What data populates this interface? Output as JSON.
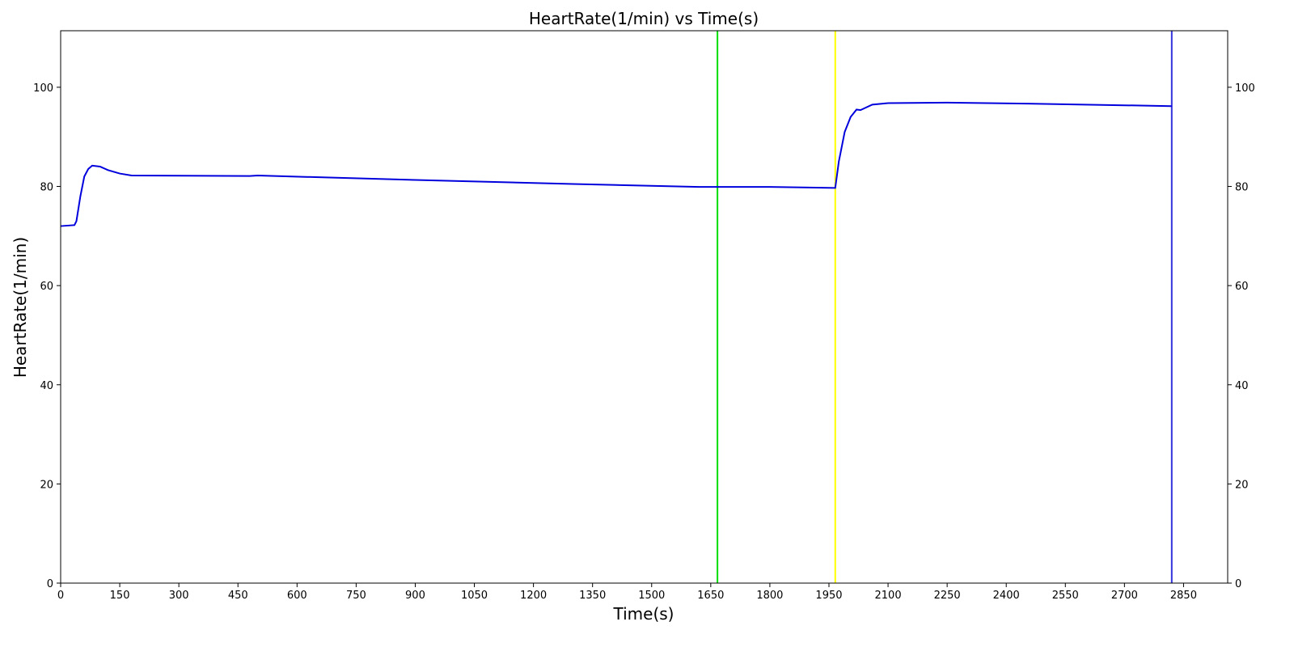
{
  "chart_data": {
    "type": "line",
    "title": "HeartRate(1/min) vs Time(s)",
    "x_label": "Time(s)",
    "y_label": "HeartRate(1/min)",
    "x": [
      0,
      35,
      40,
      50,
      60,
      70,
      80,
      100,
      120,
      150,
      180,
      480,
      500,
      900,
      1300,
      1620,
      1800,
      1966,
      1975,
      1990,
      2005,
      2020,
      2030,
      2060,
      2100,
      2250,
      2450,
      2820
    ],
    "series": [
      {
        "name": "HeartRate",
        "color": "#0000dd",
        "values": [
          72,
          72.2,
          73,
          78,
          82,
          83.5,
          84.2,
          84,
          83.3,
          82.6,
          82.2,
          82.1,
          82.2,
          81.3,
          80.5,
          79.9,
          79.9,
          79.7,
          85,
          91,
          94,
          95.5,
          95.4,
          96.5,
          96.8,
          96.9,
          96.7,
          96.2
        ]
      }
    ],
    "vlines": [
      {
        "x": 1667,
        "color": "#00dd00"
      },
      {
        "x": 1966,
        "color": "#ffff00"
      },
      {
        "x": 2820,
        "color": "#3333dd"
      }
    ],
    "xlim": [
      0,
      2962
    ],
    "ylim": [
      0,
      111.4
    ],
    "xticks": [
      0,
      150,
      300,
      450,
      600,
      750,
      900,
      1050,
      1200,
      1350,
      1500,
      1650,
      1800,
      1950,
      2100,
      2250,
      2400,
      2550,
      2700,
      2850
    ],
    "yticks": [
      0,
      20,
      40,
      60,
      80,
      100
    ],
    "right_axis": true
  }
}
